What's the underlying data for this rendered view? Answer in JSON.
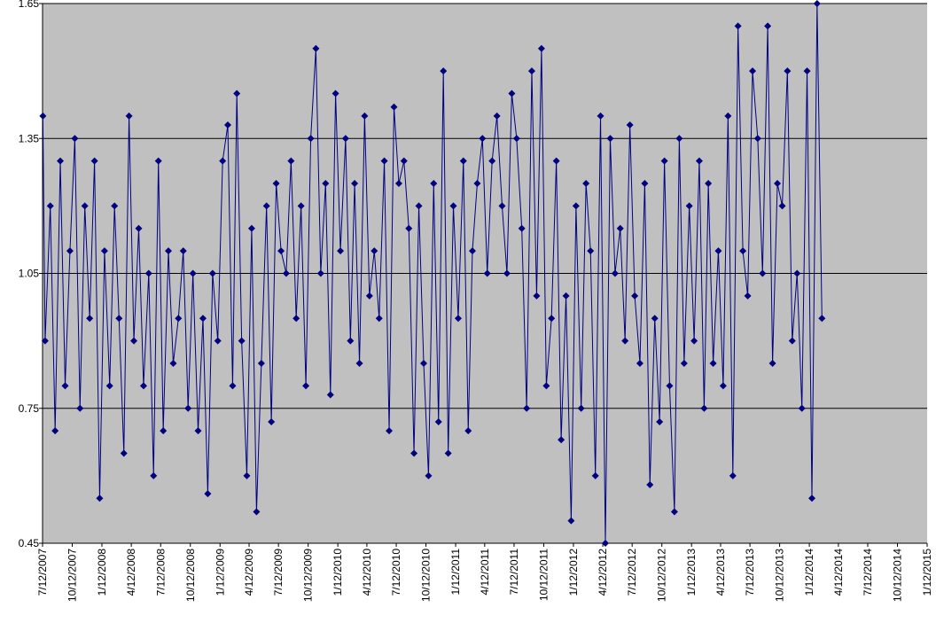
{
  "chart_data": {
    "type": "line",
    "color": "#000080",
    "marker": "diamond",
    "grid": true,
    "background": "#c0c0c0",
    "ylim": [
      0.45,
      1.65
    ],
    "yticks": [
      0.45,
      0.75,
      1.05,
      1.35,
      1.65
    ],
    "xlim": [
      "7/12/2007",
      "1/12/2015"
    ],
    "xticks": [
      "7/12/2007",
      "10/12/2007",
      "1/12/2008",
      "4/12/2008",
      "7/12/2008",
      "10/12/2008",
      "1/12/2009",
      "4/12/2009",
      "7/12/2009",
      "10/12/2009",
      "1/12/2010",
      "4/12/2010",
      "7/12/2010",
      "10/12/2010",
      "1/12/2011",
      "4/12/2011",
      "7/12/2011",
      "10/12/2011",
      "1/12/2012",
      "4/12/2012",
      "7/12/2012",
      "10/12/2012",
      "1/12/2013",
      "4/12/2013",
      "7/12/2013",
      "10/12/2013",
      "1/12/2014",
      "4/12/2014",
      "7/12/2014",
      "10/12/2014",
      "1/12/2015"
    ],
    "x": [
      "7/13/2007",
      "7/20/2007",
      "8/5/2007",
      "8/20/2007",
      "9/5/2007",
      "9/20/2007",
      "10/5/2007",
      "10/20/2007",
      "11/5/2007",
      "11/20/2007",
      "12/5/2007",
      "12/20/2007",
      "1/5/2008",
      "1/20/2008",
      "2/5/2008",
      "2/20/2008",
      "3/5/2008",
      "3/20/2008",
      "4/5/2008",
      "4/20/2008",
      "5/5/2008",
      "5/20/2008",
      "6/5/2008",
      "6/20/2008",
      "7/5/2008",
      "7/20/2008",
      "8/5/2008",
      "8/20/2008",
      "9/5/2008",
      "9/20/2008",
      "10/5/2008",
      "10/20/2008",
      "11/5/2008",
      "11/20/2008",
      "12/5/2008",
      "12/20/2008",
      "1/5/2009",
      "1/20/2009",
      "2/5/2009",
      "2/20/2009",
      "3/5/2009",
      "3/20/2009",
      "4/5/2009",
      "4/20/2009",
      "5/5/2009",
      "5/20/2009",
      "6/5/2009",
      "6/20/2009",
      "7/5/2009",
      "7/20/2009",
      "8/5/2009",
      "8/20/2009",
      "9/5/2009",
      "9/20/2009",
      "10/5/2009",
      "10/20/2009",
      "11/5/2009",
      "11/20/2009",
      "12/5/2009",
      "12/20/2009",
      "1/5/2010",
      "1/20/2010",
      "2/5/2010",
      "2/20/2010",
      "3/5/2010",
      "3/20/2010",
      "4/5/2010",
      "4/20/2010",
      "5/5/2010",
      "5/20/2010",
      "6/5/2010",
      "6/20/2010",
      "7/5/2010",
      "7/20/2010",
      "8/5/2010",
      "8/20/2010",
      "9/5/2010",
      "9/20/2010",
      "10/5/2010",
      "10/20/2010",
      "11/5/2010",
      "11/20/2010",
      "12/5/2010",
      "12/20/2010",
      "1/5/2011",
      "1/20/2011",
      "2/5/2011",
      "2/20/2011",
      "3/5/2011",
      "3/20/2011",
      "4/5/2011",
      "4/20/2011",
      "5/5/2011",
      "5/20/2011",
      "6/5/2011",
      "6/20/2011",
      "7/5/2011",
      "7/20/2011",
      "8/5/2011",
      "8/20/2011",
      "9/5/2011",
      "9/20/2011",
      "10/5/2011",
      "10/20/2011",
      "11/5/2011",
      "11/20/2011",
      "12/5/2011",
      "12/20/2011",
      "1/5/2012",
      "1/20/2012",
      "2/5/2012",
      "2/20/2012",
      "3/5/2012",
      "3/20/2012",
      "4/5/2012",
      "4/20/2012",
      "5/5/2012",
      "5/20/2012",
      "6/5/2012",
      "6/20/2012",
      "7/5/2012",
      "7/20/2012",
      "8/5/2012",
      "8/20/2012",
      "9/5/2012",
      "9/20/2012",
      "10/5/2012",
      "10/20/2012",
      "11/5/2012",
      "11/20/2012",
      "12/5/2012",
      "12/20/2012",
      "1/5/2013",
      "1/20/2013",
      "2/5/2013",
      "2/20/2013",
      "3/5/2013",
      "3/20/2013",
      "4/5/2013",
      "4/20/2013",
      "5/5/2013",
      "5/20/2013",
      "6/5/2013",
      "6/20/2013",
      "7/5/2013",
      "7/20/2013",
      "8/5/2013",
      "8/20/2013",
      "9/5/2013",
      "9/20/2013",
      "10/5/2013",
      "10/20/2013",
      "11/5/2013",
      "11/20/2013",
      "12/5/2013",
      "12/20/2013",
      "1/5/2014",
      "1/20/2014",
      "2/5/2014",
      "2/20/2014"
    ],
    "values": [
      1.4,
      0.9,
      1.2,
      0.7,
      1.3,
      0.8,
      1.1,
      1.35,
      0.75,
      1.2,
      0.95,
      1.3,
      0.55,
      1.1,
      0.8,
      1.2,
      0.95,
      0.65,
      1.4,
      0.9,
      1.15,
      0.8,
      1.05,
      0.6,
      1.3,
      0.7,
      1.1,
      0.85,
      0.95,
      1.1,
      0.75,
      1.05,
      0.7,
      0.95,
      0.56,
      1.05,
      0.9,
      1.3,
      1.38,
      0.8,
      1.45,
      0.9,
      0.6,
      1.15,
      0.52,
      0.85,
      1.2,
      0.72,
      1.25,
      1.1,
      1.05,
      1.3,
      0.95,
      1.2,
      0.8,
      1.35,
      1.55,
      1.05,
      1.25,
      0.78,
      1.45,
      1.1,
      1.35,
      0.9,
      1.25,
      0.85,
      1.4,
      1.0,
      1.1,
      0.95,
      1.3,
      0.7,
      1.42,
      1.25,
      1.3,
      1.15,
      0.65,
      1.2,
      0.85,
      0.6,
      1.25,
      0.72,
      1.5,
      0.65,
      1.2,
      0.95,
      1.3,
      0.7,
      1.1,
      1.25,
      1.35,
      1.05,
      1.3,
      1.4,
      1.2,
      1.05,
      1.45,
      1.35,
      1.15,
      0.75,
      1.5,
      1.0,
      1.55,
      0.8,
      0.95,
      1.3,
      0.68,
      1.0,
      0.5,
      1.2,
      0.75,
      1.25,
      1.1,
      0.6,
      1.4,
      0.45,
      1.35,
      1.05,
      1.15,
      0.9,
      1.38,
      1.0,
      0.85,
      1.25,
      0.58,
      0.95,
      0.72,
      1.3,
      0.8,
      0.52,
      1.35,
      0.85,
      1.2,
      0.9,
      1.3,
      0.75,
      1.25,
      0.85,
      1.1,
      0.8,
      1.4,
      0.6,
      1.6,
      1.1,
      1.0,
      1.5,
      1.35,
      1.05,
      1.6,
      0.85,
      1.25,
      1.2,
      1.5,
      0.9,
      1.05,
      0.75,
      1.5,
      0.55,
      1.65,
      0.95
    ]
  }
}
